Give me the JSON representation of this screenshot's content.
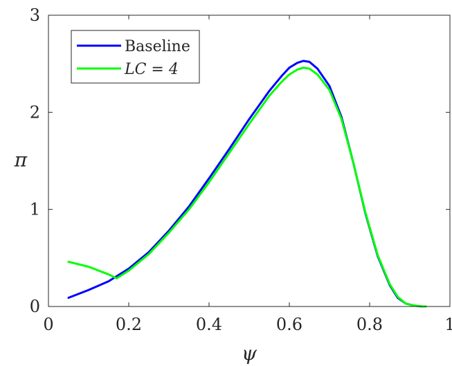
{
  "chart_data": {
    "type": "line",
    "title": "",
    "xlabel": "ψ",
    "ylabel": "π",
    "xlim": [
      0,
      1
    ],
    "ylim": [
      0,
      3
    ],
    "xticks": [
      0,
      0.2,
      0.4,
      0.6,
      0.8,
      1
    ],
    "xtick_labels": [
      "0",
      "0.2",
      "0.4",
      "0.6",
      "0.8",
      "1"
    ],
    "yticks": [
      0,
      1,
      2,
      3
    ],
    "ytick_labels": [
      "0",
      "1",
      "2",
      "3"
    ],
    "grid": false,
    "legend_position": "top-left",
    "series": [
      {
        "name": "Baseline",
        "color": "#0000ff",
        "x": [
          0.05,
          0.1,
          0.15,
          0.2,
          0.25,
          0.3,
          0.35,
          0.4,
          0.45,
          0.5,
          0.55,
          0.58,
          0.6,
          0.62,
          0.635,
          0.65,
          0.67,
          0.7,
          0.73,
          0.76,
          0.79,
          0.82,
          0.85,
          0.87,
          0.89,
          0.91,
          0.93,
          0.94
        ],
        "y": [
          0.09,
          0.17,
          0.26,
          0.39,
          0.56,
          0.78,
          1.03,
          1.32,
          1.62,
          1.93,
          2.22,
          2.37,
          2.46,
          2.51,
          2.53,
          2.52,
          2.45,
          2.27,
          1.95,
          1.47,
          0.95,
          0.52,
          0.22,
          0.09,
          0.03,
          0.01,
          0.0,
          0.0
        ]
      },
      {
        "name": "LC = 4",
        "color": "#00ff00",
        "x": [
          0.05,
          0.1,
          0.15,
          0.17,
          0.2,
          0.25,
          0.3,
          0.35,
          0.4,
          0.45,
          0.5,
          0.55,
          0.58,
          0.6,
          0.62,
          0.635,
          0.65,
          0.67,
          0.7,
          0.73,
          0.76,
          0.79,
          0.82,
          0.85,
          0.87,
          0.89,
          0.91,
          0.93,
          0.94
        ],
        "y": [
          0.46,
          0.41,
          0.33,
          0.29,
          0.37,
          0.54,
          0.76,
          1.0,
          1.28,
          1.58,
          1.88,
          2.17,
          2.31,
          2.39,
          2.44,
          2.46,
          2.45,
          2.39,
          2.23,
          1.93,
          1.47,
          0.96,
          0.53,
          0.23,
          0.1,
          0.03,
          0.01,
          0.0,
          0.0
        ]
      }
    ],
    "legend": {
      "entries": [
        {
          "label": "Baseline",
          "color": "#0000ff"
        },
        {
          "label": "LC = 4",
          "color": "#00ff00"
        }
      ]
    }
  }
}
